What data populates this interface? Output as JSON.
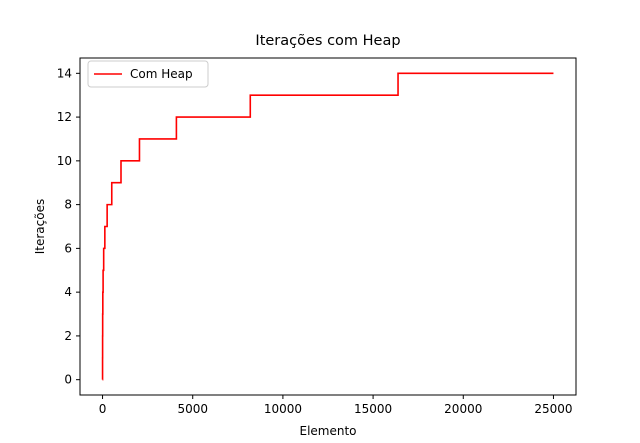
{
  "chart_data": {
    "type": "line",
    "title": "Iterações com Heap",
    "xlabel": "Elemento",
    "ylabel": "Iterações",
    "xlim": [
      -1250,
      26250
    ],
    "ylim": [
      -0.7,
      14.7
    ],
    "xticks": [
      0,
      5000,
      10000,
      15000,
      20000,
      25000
    ],
    "yticks": [
      0,
      2,
      4,
      6,
      8,
      10,
      12,
      14
    ],
    "grid": false,
    "legend_position": "upper-left",
    "series": [
      {
        "name": "Com Heap",
        "color": "#ff0000",
        "step": true,
        "x": [
          0,
          1,
          3,
          7,
          15,
          31,
          63,
          127,
          255,
          511,
          1023,
          2047,
          4095,
          8191,
          16383,
          25000
        ],
        "y": [
          0,
          1,
          2,
          3,
          4,
          5,
          6,
          7,
          8,
          9,
          10,
          11,
          12,
          13,
          14,
          14
        ]
      }
    ]
  }
}
